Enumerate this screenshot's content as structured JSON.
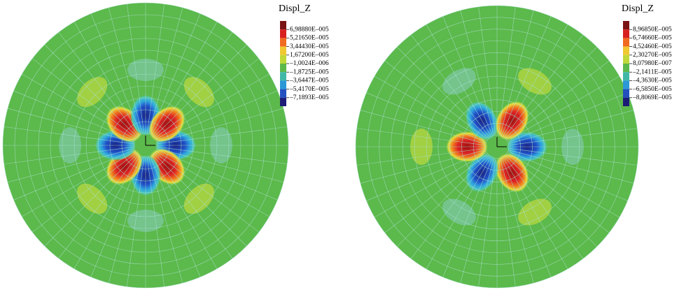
{
  "panels": [
    {
      "legend": {
        "title": "Displ_Z",
        "labels": [
          "6,98880E–005",
          "5,21650E–005",
          "3,44430E–005",
          "1,67200E–005",
          "–1,0024E–006",
          "–1,8725E–005",
          "–3,6447E–005",
          "–5,4170E–005",
          "–7,1893E–005"
        ]
      }
    },
    {
      "legend": {
        "title": "Displ_Z",
        "labels": [
          "8,96850E–005",
          "6,74660E–005",
          "4,52460E–005",
          "2,30270E–005",
          "8,07980E–007",
          "–2,1411E–005",
          "–4,3630E–005",
          "–6,5850E–005",
          "–8,8069E–005"
        ]
      }
    }
  ]
}
